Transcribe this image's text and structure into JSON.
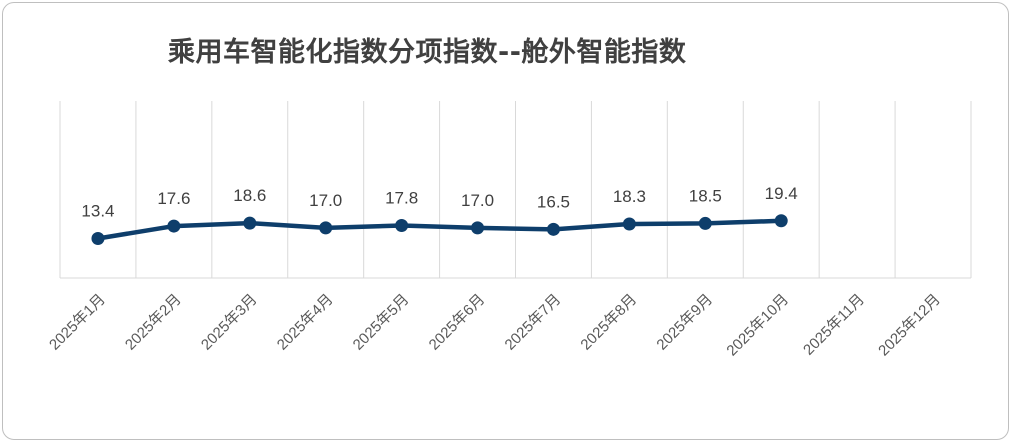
{
  "chart_data": {
    "type": "line",
    "title": "乘用车智能化指数分项指数--舱外智能指数",
    "categories": [
      "2025年1月",
      "2025年2月",
      "2025年3月",
      "2025年4月",
      "2025年5月",
      "2025年6月",
      "2025年7月",
      "2025年8月",
      "2025年9月",
      "2025年10月",
      "2025年11月",
      "2025年12月"
    ],
    "series": [
      {
        "values": [
          13.4,
          17.6,
          18.6,
          17.0,
          17.8,
          17.0,
          16.5,
          18.3,
          18.5,
          19.4,
          null,
          null
        ]
      }
    ],
    "value_labels": [
      "13.4",
      "17.6",
      "18.6",
      "17.0",
      "17.8",
      "17.0",
      "16.5",
      "18.3",
      "18.5",
      "19.4"
    ],
    "ylim": [
      0,
      60
    ],
    "grid": "vertical",
    "legend": "none",
    "line_color": "#0e3e6b",
    "grid_color": "#d9d9d9"
  }
}
